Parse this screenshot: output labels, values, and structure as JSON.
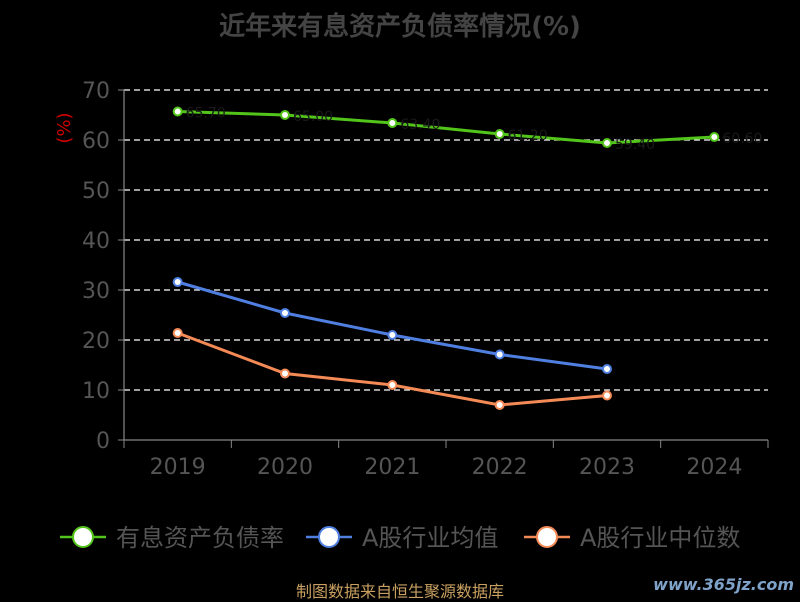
{
  "chart_data": {
    "type": "line",
    "title": "近年来有息资产负债率情况(%)",
    "ylabel": "(%)",
    "xlabel": "",
    "categories": [
      "2019",
      "2020",
      "2021",
      "2022",
      "2023",
      "2024"
    ],
    "ylim": [
      0,
      70
    ],
    "yticks": [
      0,
      10,
      20,
      30,
      40,
      50,
      60,
      70
    ],
    "grid": true,
    "legend_position": "bottom",
    "series": [
      {
        "name": "有息资产负债率",
        "color": "#52c41a",
        "values": [
          65.7,
          65.0,
          63.4,
          61.2,
          59.4,
          60.6
        ]
      },
      {
        "name": "A股行业均值",
        "color": "#4f7fe0",
        "values": [
          31.6,
          25.4,
          21.0,
          17.1,
          14.2,
          null
        ]
      },
      {
        "name": "A股行业中位数",
        "color": "#f48a55",
        "values": [
          21.4,
          13.3,
          11.0,
          7.0,
          8.9,
          null
        ]
      }
    ]
  },
  "source_text": "制图数据来自恒生聚源数据库",
  "watermark_text": "www.365jz.com"
}
